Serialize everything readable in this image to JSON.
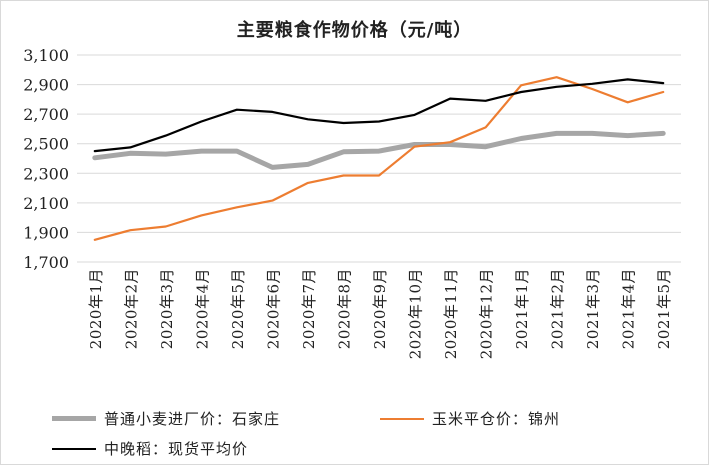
{
  "chart_data": {
    "type": "line",
    "title": "主要粮食作物价格（元/吨）",
    "xlabel": "",
    "ylabel": "",
    "ylim": [
      1700,
      3100
    ],
    "yticks": [
      1700,
      1900,
      2100,
      2300,
      2500,
      2700,
      2900,
      3100
    ],
    "ytick_labels": [
      "1,700",
      "1,900",
      "2,100",
      "2,300",
      "2,500",
      "2,700",
      "2,900",
      "3,100"
    ],
    "grid": "horizontal",
    "legend_position": "bottom",
    "categories": [
      "2020年1月",
      "2020年2月",
      "2020年3月",
      "2020年4月",
      "2020年5月",
      "2020年6月",
      "2020年7月",
      "2020年8月",
      "2020年9月",
      "2020年10月",
      "2020年11月",
      "2020年12月",
      "2021年1月",
      "2021年2月",
      "2021年3月",
      "2021年4月",
      "2021年5月"
    ],
    "series": [
      {
        "name": "普通小麦进厂价：石家庄",
        "color": "#a6a6a6",
        "width": 5,
        "values": [
          2405,
          2435,
          2430,
          2450,
          2450,
          2340,
          2360,
          2445,
          2450,
          2495,
          2495,
          2480,
          2535,
          2570,
          2570,
          2555,
          2570
        ]
      },
      {
        "name": "玉米平仓价：锦州",
        "color": "#ed7d31",
        "width": 2.2,
        "values": [
          1850,
          1915,
          1940,
          2015,
          2070,
          2115,
          2235,
          2285,
          2285,
          2480,
          2510,
          2610,
          2895,
          2950,
          2870,
          2780,
          2850
        ]
      },
      {
        "name": "中晚稻：现货平均价",
        "color": "#000000",
        "width": 2.2,
        "values": [
          2450,
          2475,
          2555,
          2650,
          2730,
          2715,
          2665,
          2640,
          2650,
          2695,
          2805,
          2790,
          2850,
          2885,
          2905,
          2935,
          2910
        ]
      }
    ]
  }
}
